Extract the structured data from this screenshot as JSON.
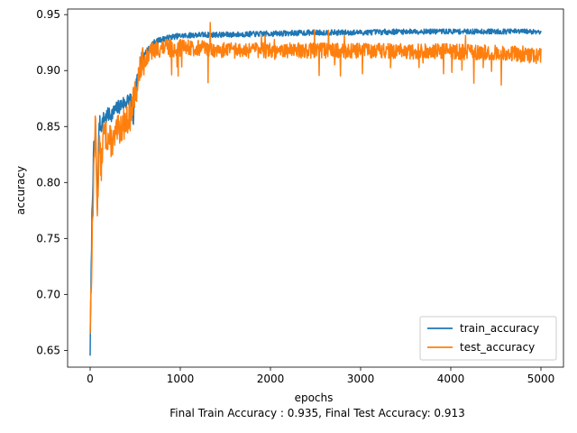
{
  "chart_data": {
    "type": "line",
    "title": "",
    "xlabel": "epochs",
    "ylabel": "accuracy",
    "caption": "Final Train Accuracy : 0.935, Final Test Accuracy: 0.913",
    "xlim": [
      -250,
      5250
    ],
    "ylim": [
      0.635,
      0.955
    ],
    "x_ticks": [
      0,
      1000,
      2000,
      3000,
      4000,
      5000
    ],
    "x_tick_labels": [
      "0",
      "1000",
      "2000",
      "3000",
      "4000",
      "5000"
    ],
    "y_ticks": [
      0.65,
      0.7,
      0.75,
      0.8,
      0.85,
      0.9,
      0.95
    ],
    "y_tick_labels": [
      "0.65",
      "0.70",
      "0.75",
      "0.80",
      "0.85",
      "0.90",
      "0.95"
    ],
    "grid": false,
    "legend_placement": "lower-right",
    "series": [
      {
        "name": "train_accuracy",
        "color": "#1f77b4",
        "x": [
          0,
          20,
          40,
          60,
          80,
          100,
          120,
          150,
          200,
          250,
          300,
          350,
          400,
          450,
          480,
          500,
          550,
          600,
          650,
          700,
          800,
          900,
          1000,
          1200,
          1500,
          2000,
          2500,
          3000,
          3500,
          4000,
          4500,
          5000
        ],
        "y": [
          0.649,
          0.77,
          0.83,
          0.845,
          0.778,
          0.855,
          0.85,
          0.857,
          0.86,
          0.862,
          0.866,
          0.87,
          0.872,
          0.875,
          0.855,
          0.88,
          0.905,
          0.915,
          0.92,
          0.925,
          0.928,
          0.93,
          0.931,
          0.932,
          0.932,
          0.933,
          0.934,
          0.934,
          0.935,
          0.935,
          0.935,
          0.935
        ]
      },
      {
        "name": "test_accuracy",
        "color": "#ff7f0e",
        "x": [
          0,
          20,
          40,
          60,
          80,
          100,
          120,
          150,
          200,
          250,
          300,
          350,
          400,
          450,
          500,
          550,
          600,
          700,
          800,
          900,
          1000,
          1200,
          1500,
          2000,
          2500,
          3000,
          3500,
          4000,
          4500,
          5000
        ],
        "y": [
          0.672,
          0.738,
          0.81,
          0.855,
          0.77,
          0.84,
          0.81,
          0.845,
          0.84,
          0.835,
          0.845,
          0.85,
          0.855,
          0.86,
          0.88,
          0.9,
          0.91,
          0.918,
          0.92,
          0.92,
          0.92,
          0.92,
          0.918,
          0.918,
          0.918,
          0.918,
          0.917,
          0.917,
          0.916,
          0.913
        ]
      }
    ]
  }
}
